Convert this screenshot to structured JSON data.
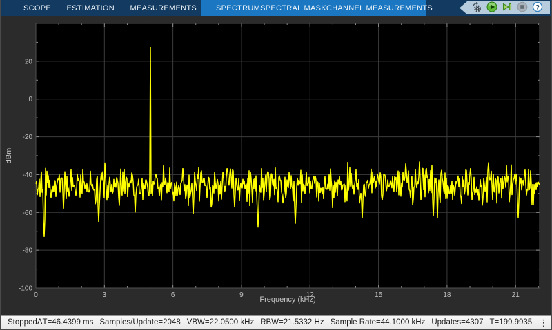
{
  "toolbar": {
    "tabs": [
      "SCOPE",
      "ESTIMATION",
      "MEASUREMENTS"
    ],
    "context_tabs": [
      "SPECTRUM",
      "SPECTRAL MASK",
      "CHANNEL MEASUREMENTS"
    ],
    "buttons": [
      {
        "icon": "gear-arrow-icon",
        "name": "settings",
        "disabled": false
      },
      {
        "icon": "run-icon",
        "name": "run",
        "disabled": false
      },
      {
        "icon": "step-forward-icon",
        "name": "step-forward",
        "disabled": false
      },
      {
        "icon": "stop-icon",
        "name": "stop",
        "disabled": true
      },
      {
        "icon": "help-icon",
        "name": "help",
        "disabled": false
      }
    ],
    "colors": {
      "dark_bg": "#133a60",
      "active_bg": "#1b77c1",
      "pill_bg": "#b7cddd"
    }
  },
  "status_bar": {
    "state": "Stopped",
    "metrics": [
      "ΔT=46.4399 ms",
      "Samples/Update=2048",
      "VBW=22.0500 kHz",
      "RBW=21.5332 Hz",
      "Sample Rate=44.1000 kHz",
      "Updates=4307",
      "T=199.9935"
    ],
    "overflow_icon": "kebab-menu-icon",
    "overflow_glyph": "⋮"
  },
  "chart_data": {
    "type": "line",
    "title": "",
    "xlabel": "Frequency (kHz)",
    "ylabel": "dBm",
    "xlim": [
      0,
      22.05
    ],
    "ylim": [
      -100,
      40
    ],
    "x_ticks": [
      0,
      3,
      6,
      9,
      12,
      15,
      18,
      21
    ],
    "y_ticks": [
      20,
      0,
      -20,
      -40,
      -60,
      -80,
      -100
    ],
    "x_minor_step": 1,
    "y_minor_step": 10,
    "grid": true,
    "legend": "off",
    "plot_bg": "#000000",
    "grid_color": "#3c3c3c",
    "border_color": "#515151",
    "tick_color": "#8f8f8f",
    "line_color": "#ffff00",
    "series": [
      {
        "name": "power-spectrum",
        "description": "noise floor with single sine tone",
        "tone": {
          "frequency_khz": 5.0,
          "peak_dbm": 27.6
        },
        "noise_floor_dbm": -45,
        "noise_std_db": 4.5,
        "noise_ceiling_dbm": -33,
        "notable_dips": [
          {
            "f": 0.36,
            "v": -73
          },
          {
            "f": 1.2,
            "v": -58
          },
          {
            "f": 2.75,
            "v": -65
          },
          {
            "f": 4.35,
            "v": -60
          },
          {
            "f": 6.9,
            "v": -61
          },
          {
            "f": 9.72,
            "v": -68
          },
          {
            "f": 11.36,
            "v": -66
          },
          {
            "f": 14.3,
            "v": -63
          },
          {
            "f": 17.4,
            "v": -62
          },
          {
            "f": 21.1,
            "v": -63
          }
        ],
        "seed": 20
      }
    ]
  }
}
